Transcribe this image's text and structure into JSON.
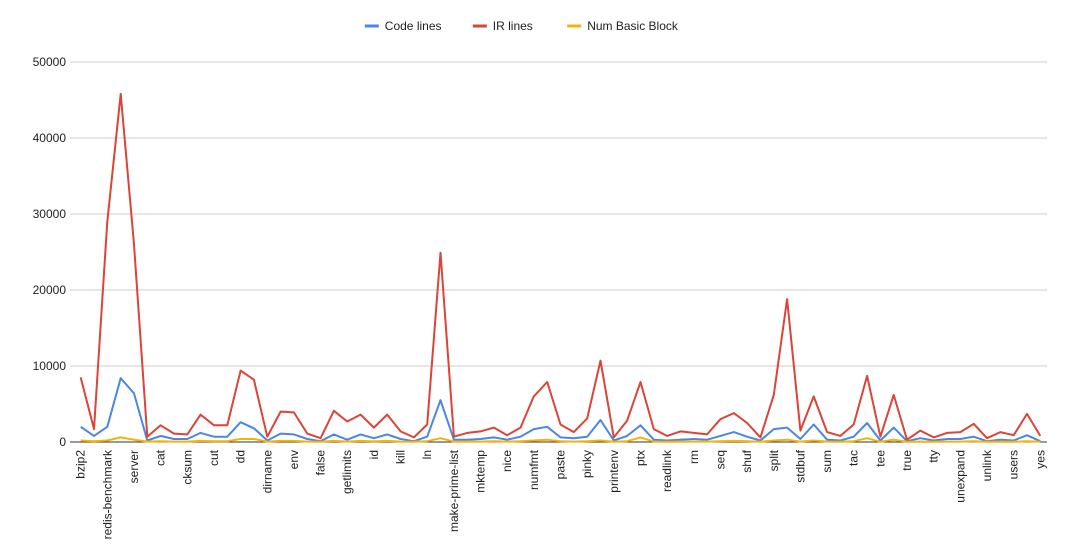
{
  "chart_data": {
    "type": "line",
    "categories": [
      "bzip2",
      null,
      "redis-benchmark",
      null,
      "server",
      null,
      "cat",
      null,
      "cksum",
      null,
      "cut",
      null,
      "dd",
      null,
      "dirname",
      null,
      "env",
      null,
      "false",
      null,
      "getlimits",
      null,
      "id",
      null,
      "kill",
      null,
      "ln",
      null,
      "make-prime-list",
      null,
      "mktemp",
      null,
      "nice",
      null,
      "numfmt",
      null,
      "paste",
      null,
      "pinky",
      null,
      "printenv",
      null,
      "ptx",
      null,
      "readlink",
      null,
      "rm",
      null,
      "seq",
      null,
      "shuf",
      null,
      "split",
      null,
      "stdbuf",
      null,
      "sum",
      null,
      "tac",
      null,
      "tee",
      null,
      "true",
      null,
      "tty",
      null,
      "unexpand",
      null,
      "unlink",
      null,
      "users",
      null,
      "yes"
    ],
    "series": [
      {
        "name": "Code lines",
        "color": "#4a86e8",
        "values": [
          2000,
          800,
          2000,
          8400,
          6400,
          200,
          800,
          400,
          400,
          1200,
          700,
          700,
          2600,
          1800,
          200,
          1100,
          1000,
          400,
          100,
          1000,
          300,
          1000,
          500,
          1000,
          400,
          100,
          700,
          5500,
          300,
          300,
          400,
          600,
          300,
          700,
          1700,
          2000,
          600,
          500,
          700,
          2900,
          200,
          800,
          2200,
          300,
          200,
          300,
          400,
          300,
          800,
          1300,
          700,
          200,
          1700,
          1900,
          400,
          2300,
          300,
          200,
          700,
          2500,
          200,
          1900,
          100,
          500,
          200,
          400,
          400,
          700,
          100,
          300,
          200,
          900,
          100
        ]
      },
      {
        "name": "IR lines",
        "color": "#db4437",
        "values": [
          8500,
          1700,
          29000,
          45800,
          26000,
          700,
          2200,
          1100,
          1000,
          3600,
          2200,
          2200,
          9400,
          8200,
          700,
          4000,
          3900,
          1100,
          500,
          4100,
          2700,
          3600,
          1900,
          3600,
          1400,
          600,
          2300,
          24900,
          700,
          1200,
          1400,
          1900,
          900,
          1900,
          6000,
          7900,
          2300,
          1300,
          3100,
          10700,
          600,
          2800,
          7900,
          1700,
          800,
          1400,
          1200,
          1000,
          3000,
          3800,
          2500,
          600,
          6200,
          18800,
          1500,
          6000,
          1300,
          800,
          2300,
          8700,
          700,
          6200,
          300,
          1500,
          600,
          1200,
          1300,
          2400,
          500,
          1300,
          900,
          3700,
          800
        ]
      },
      {
        "name": "Num Basic Block",
        "color": "#f4b400",
        "values": [
          200,
          100,
          200,
          600,
          300,
          50,
          100,
          50,
          50,
          150,
          100,
          100,
          400,
          400,
          50,
          150,
          150,
          50,
          20,
          150,
          50,
          150,
          80,
          150,
          50,
          20,
          100,
          500,
          50,
          50,
          50,
          100,
          50,
          100,
          200,
          300,
          100,
          50,
          100,
          200,
          30,
          100,
          600,
          50,
          30,
          50,
          50,
          50,
          100,
          150,
          100,
          30,
          200,
          300,
          50,
          200,
          50,
          30,
          100,
          500,
          30,
          300,
          20,
          50,
          30,
          50,
          50,
          100,
          20,
          50,
          30,
          100,
          20
        ]
      }
    ],
    "ylim": [
      0,
      50000
    ],
    "yticks": [
      0,
      10000,
      20000,
      30000,
      40000,
      50000
    ],
    "grid": true,
    "legend": "top"
  }
}
